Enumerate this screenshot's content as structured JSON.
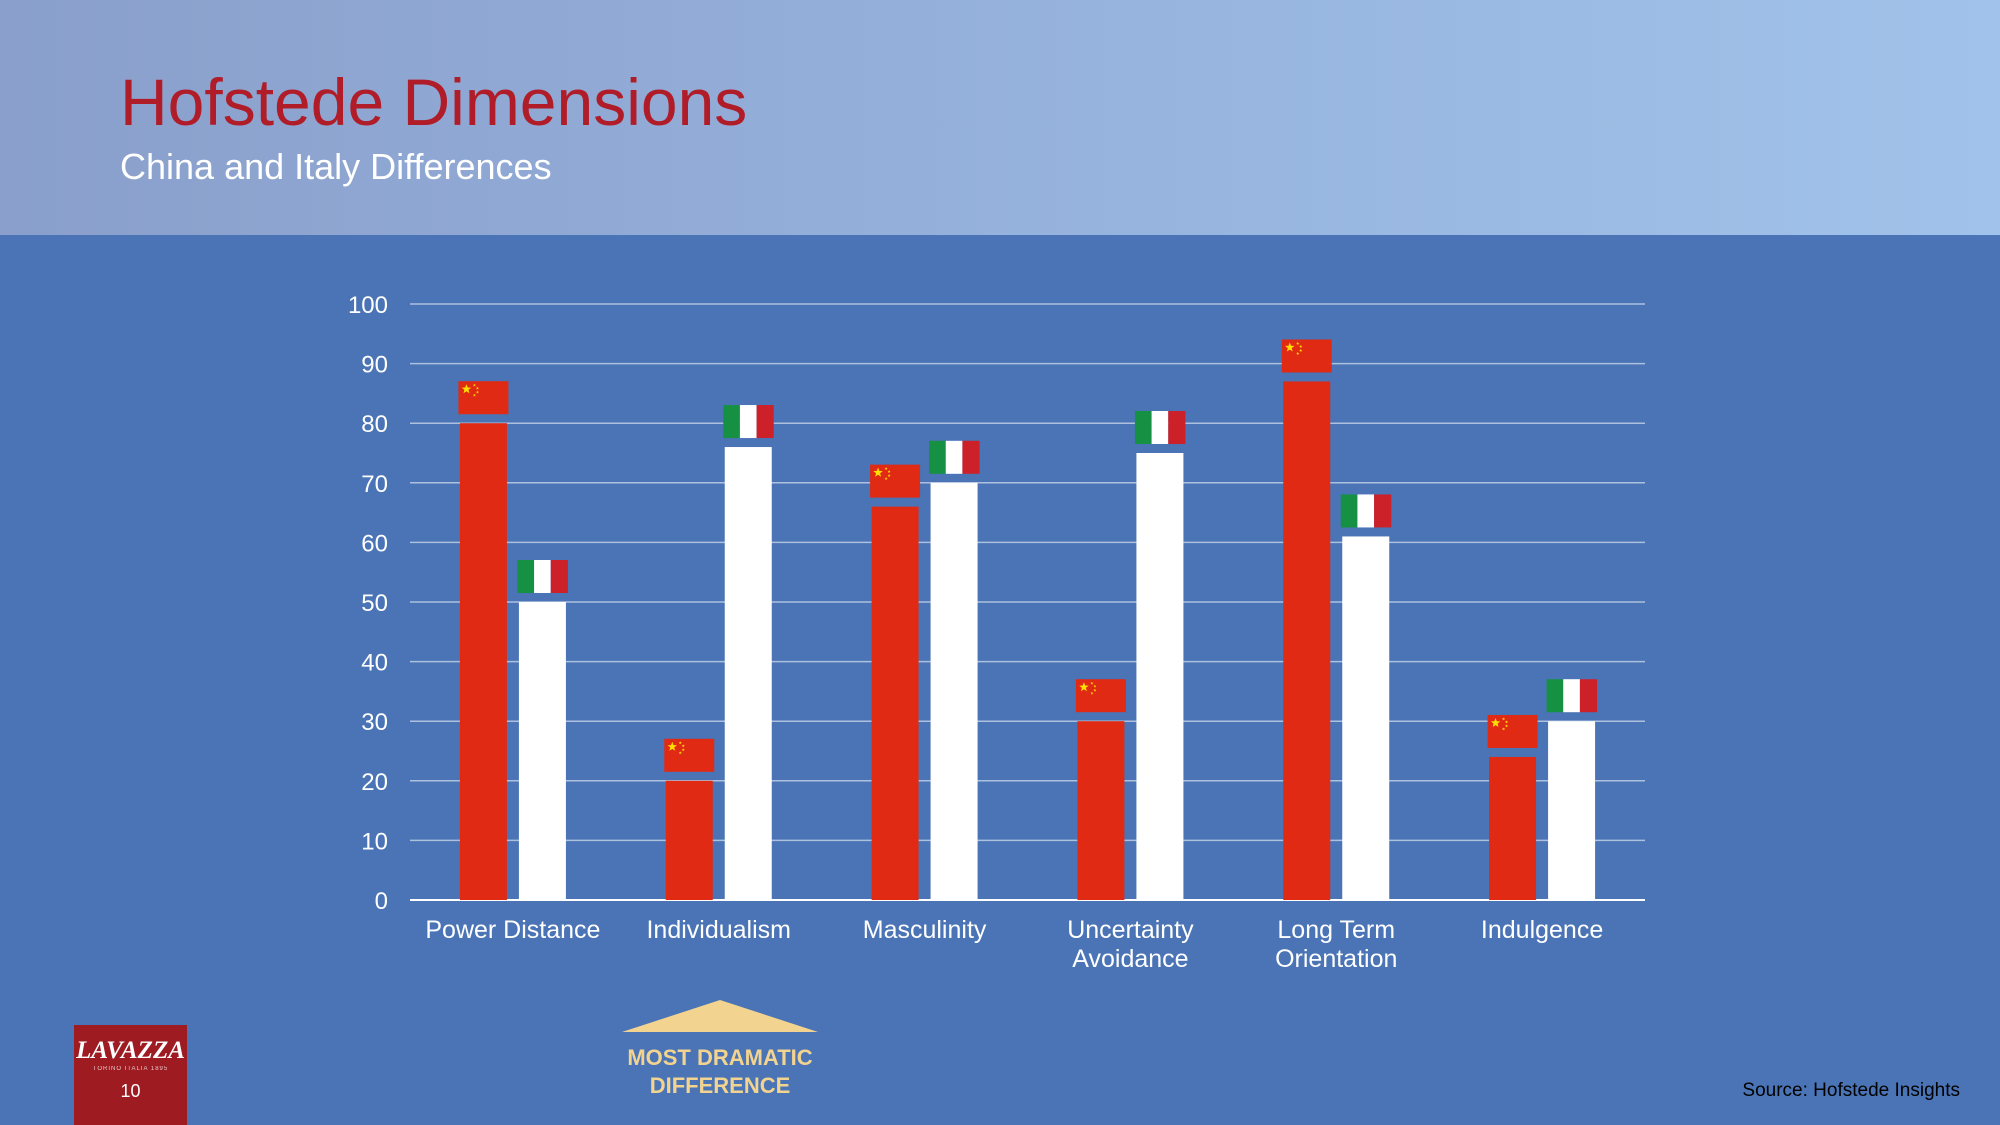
{
  "slide": {
    "title": "Hofstede Dimensions",
    "subtitle": "China and Italy Differences",
    "page_number": "10",
    "logo": {
      "brand": "LAVAZZA",
      "tagline": "TORINO ITALIA 1895"
    },
    "callout": {
      "line1": "MOST DRAMATIC",
      "line2": "DIFFERENCE"
    },
    "source": "Source: Hofstede Insights"
  },
  "colors": {
    "background": "#4a74b5",
    "title": "#b01c28",
    "china_bar": "#e02a14",
    "italy_bar": "#ffffff",
    "callout": "#f2d38f",
    "flag_green": "#169143",
    "flag_red": "#cd212a",
    "flag_star": "#ffde00"
  },
  "chart_data": {
    "type": "bar",
    "categories": [
      [
        "Power Distance"
      ],
      [
        "Individualism"
      ],
      [
        "Masculinity"
      ],
      [
        "Uncertainty",
        "Avoidance"
      ],
      [
        "Long Term",
        "Orientation"
      ],
      [
        "Indulgence"
      ]
    ],
    "series": [
      {
        "name": "China",
        "icon": "china-flag-icon",
        "values": [
          80,
          20,
          66,
          30,
          87,
          24
        ]
      },
      {
        "name": "Italy",
        "icon": "italy-flag-icon",
        "values": [
          50,
          76,
          70,
          75,
          61,
          30
        ]
      }
    ],
    "ylim": [
      0,
      100
    ],
    "yticks": [
      0,
      10,
      20,
      30,
      40,
      50,
      60,
      70,
      80,
      90,
      100
    ],
    "grid": true,
    "legend": "flag icons above bars"
  }
}
